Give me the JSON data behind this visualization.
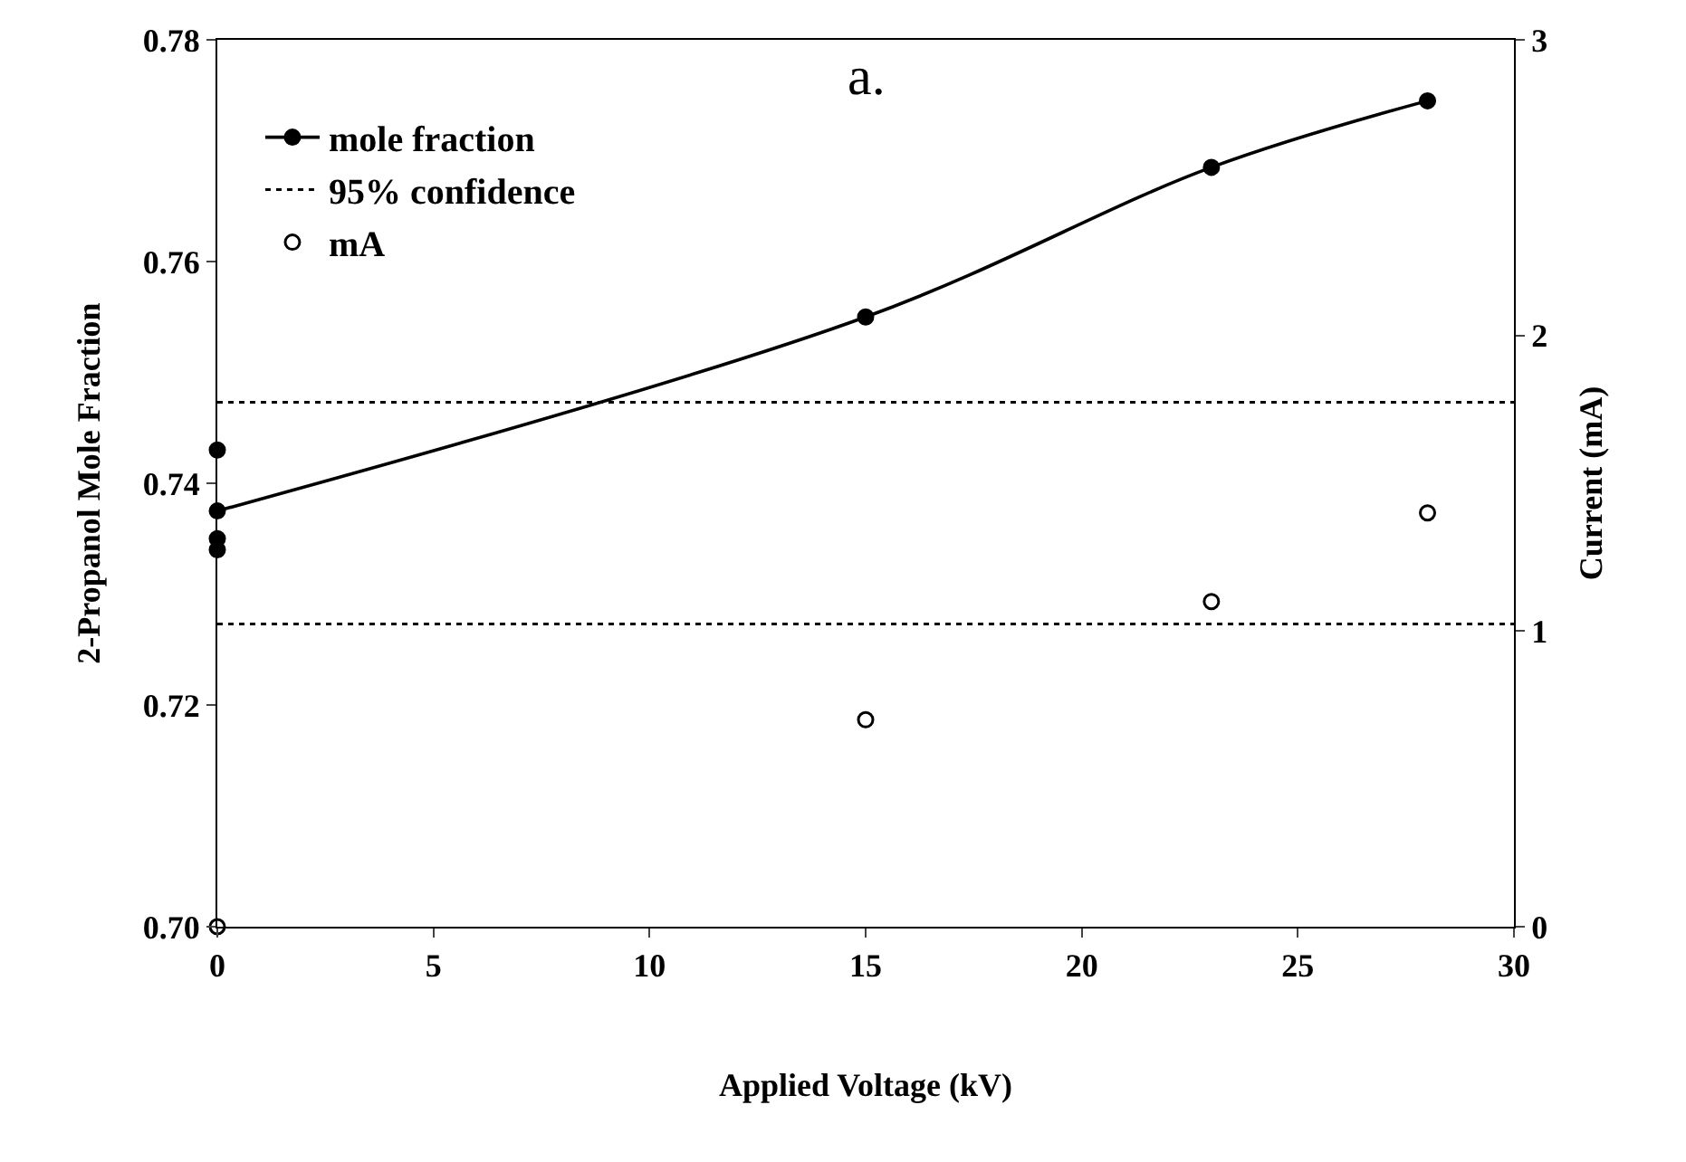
{
  "chart_data": {
    "type": "line",
    "annotations": [
      "a."
    ],
    "xlabel": "Applied Voltage (kV)",
    "ylabel": "2-Propanol Mole Fraction",
    "y2label": "Current (mA)",
    "series": [
      {
        "name": "mole fraction",
        "color": "#000000",
        "marker": "circle",
        "line_style": "solid",
        "x": [
          0,
          15,
          23,
          28
        ],
        "values": [
          0.7375,
          0.755,
          0.7685,
          0.7745
        ]
      },
      {
        "color": "#000000",
        "type": "scatter",
        "marker": "circle",
        "x": [
          0,
          0,
          0
        ],
        "values": [
          0.743,
          0.735,
          0.734
        ]
      },
      {
        "name": "mA",
        "color": "#000000",
        "type": "scatter",
        "marker": "circle-open",
        "axis": "y2",
        "x": [
          0,
          15,
          23,
          28
        ],
        "values": [
          0,
          0.7,
          1.1,
          1.4
        ]
      }
    ],
    "ref_lines": [
      {
        "axis": "y",
        "value": 0.7473,
        "label": "95% confidence",
        "line_style": "dotted",
        "color": "#000000"
      },
      {
        "axis": "y",
        "value": 0.7273,
        "line_style": "dotted",
        "color": "#000000"
      }
    ],
    "xlim": [
      0,
      30
    ],
    "xticks": [
      0,
      5,
      10,
      15,
      20,
      25,
      30
    ],
    "ylim": [
      0.7,
      0.78
    ],
    "yticks": [
      {
        "value": 0.7,
        "label": "0.70"
      },
      0.72,
      0.74,
      0.76,
      0.78
    ],
    "y2lim": [
      0,
      3
    ],
    "y2ticks": [
      0,
      1,
      2,
      3
    ],
    "legend": "top left"
  }
}
